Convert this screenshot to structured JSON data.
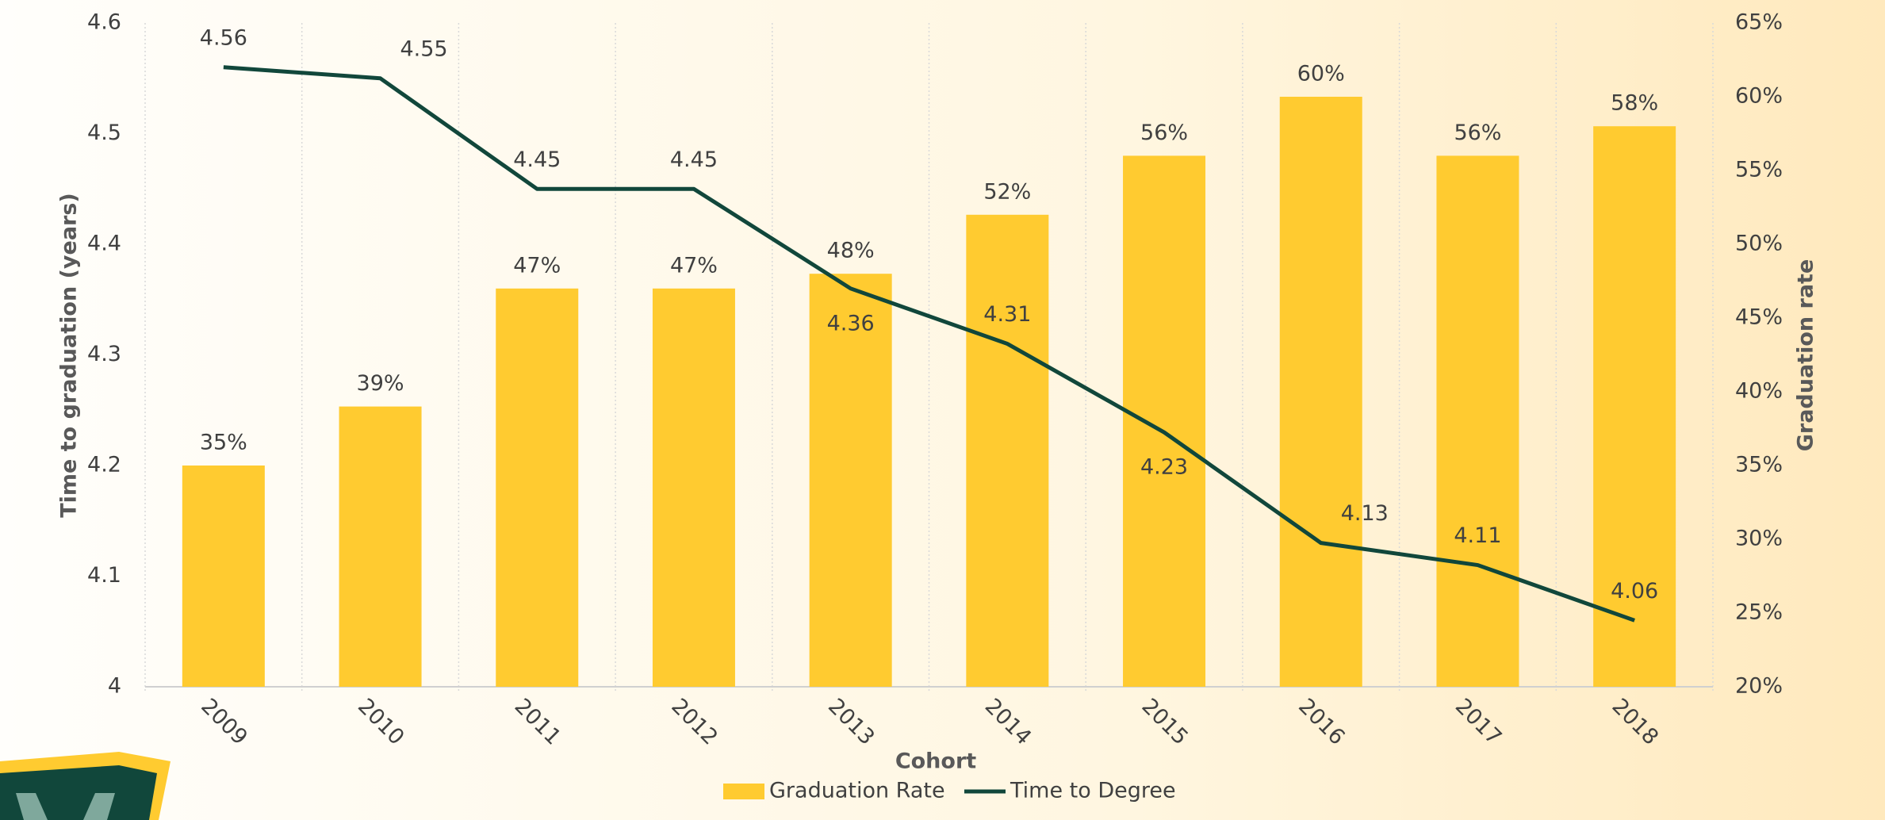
{
  "chart_data": {
    "type": "bar_line",
    "x_label": "Cohort",
    "y_label": "Time to graduation (years)",
    "y2_label": "Graduation rate",
    "categories": [
      "2009",
      "2010",
      "2011",
      "2012",
      "2013",
      "2014",
      "2015",
      "2016",
      "2017",
      "2018"
    ],
    "series": [
      {
        "name": "Graduation Rate",
        "type": "bar",
        "axis": "y2",
        "color": "#ffcb30",
        "values": [
          35,
          39,
          47,
          47,
          48,
          52,
          56,
          60,
          56,
          58
        ],
        "value_labels": [
          "35%",
          "39%",
          "47%",
          "47%",
          "48%",
          "52%",
          "56%",
          "60%",
          "56%",
          "58%"
        ]
      },
      {
        "name": "Time to Degree",
        "type": "line",
        "axis": "y",
        "color": "#11473b",
        "values": [
          4.56,
          4.55,
          4.45,
          4.45,
          4.36,
          4.31,
          4.23,
          4.13,
          4.11,
          4.06
        ]
      }
    ],
    "ylim": [
      4,
      4.6
    ],
    "yticks": [
      4,
      4.1,
      4.2,
      4.3,
      4.4,
      4.5,
      4.6
    ],
    "y2lim": [
      20,
      65
    ],
    "y2ticks": [
      {
        "value": 20,
        "label": "20%"
      },
      {
        "value": 25,
        "label": "25%"
      },
      {
        "value": 30,
        "label": "30%"
      },
      {
        "value": 35,
        "label": "35%"
      },
      {
        "value": 40,
        "label": "40%"
      },
      {
        "value": 45,
        "label": "45%"
      },
      {
        "value": 50,
        "label": "50%"
      },
      {
        "value": 55,
        "label": "55%"
      },
      {
        "value": 60,
        "label": "60%"
      },
      {
        "value": 65,
        "label": "65%"
      }
    ],
    "grid": true,
    "legend": "bottom"
  }
}
